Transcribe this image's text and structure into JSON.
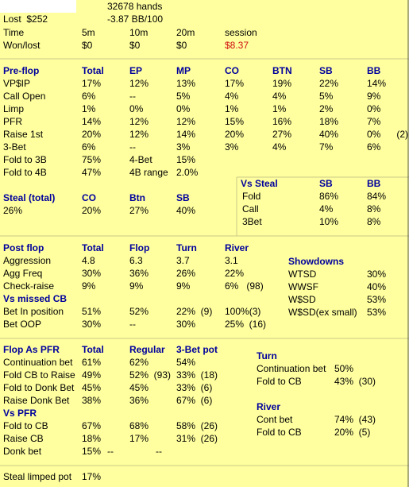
{
  "summary": {
    "hands": "32678 hands",
    "lost": "Lost  $252",
    "winrate": "-3.87 BB/100"
  },
  "won_table": {
    "header": [
      "Time",
      "5m",
      "10m",
      "20m",
      "session"
    ],
    "rows": [
      [
        "Won/lost",
        "$0",
        "$0",
        "$0",
        "$8.37"
      ]
    ]
  },
  "preflop": {
    "header": [
      "Pre-flop",
      "Total",
      "EP",
      "MP",
      "CO",
      "BTN",
      "SB",
      "BB"
    ],
    "rows": [
      [
        "VP$IP",
        "17%",
        "12%",
        "13%",
        "17%",
        "19%",
        "22%",
        "14%"
      ],
      [
        "Call Open",
        "6%",
        "--",
        "5%",
        "4%",
        "4%",
        "5%",
        "9%"
      ],
      [
        "Limp",
        "1%",
        "0%",
        "0%",
        "1%",
        "1%",
        "2%",
        "0%"
      ],
      [
        "PFR",
        "14%",
        "12%",
        "12%",
        "15%",
        "16%",
        "18%",
        "7%"
      ],
      [
        "Raise 1st",
        "20%",
        "12%",
        "14%",
        "20%",
        "27%",
        "40%",
        "0%      (2)"
      ],
      [
        "3-Bet",
        "6%",
        "--",
        "3%",
        "3%",
        "4%",
        "7%",
        "6%"
      ]
    ]
  },
  "preflop_extra": {
    "rows": [
      [
        "Fold to 3B",
        "75%",
        "4-Bet",
        "15%"
      ],
      [
        "Fold to 4B",
        "47%",
        "4B range",
        "2.0%"
      ]
    ]
  },
  "vs_steal": {
    "header": [
      "Vs Steal",
      "SB",
      "BB"
    ],
    "rows": [
      [
        "Fold",
        "86%",
        "84%"
      ],
      [
        "Call",
        "4%",
        "8%"
      ],
      [
        "3Bet",
        "10%",
        "8%"
      ]
    ]
  },
  "steal": {
    "header": [
      "Steal (total)",
      "CO",
      "Btn",
      "SB"
    ],
    "rows": [
      [
        "26%",
        "20%",
        "27%",
        "40%"
      ]
    ]
  },
  "postflop": {
    "header": [
      "Post flop",
      "Total",
      "Flop",
      "Turn",
      "River"
    ],
    "rows": [
      [
        "Aggression",
        "4.8",
        "6.3",
        "3.7",
        "3.1"
      ],
      [
        "Agg Freq",
        "30%",
        "36%",
        "26%",
        "22%"
      ],
      [
        "Check-raise",
        "9%",
        "9%",
        "9%",
        "6%   (98)"
      ]
    ]
  },
  "vs_missed_cb": {
    "header": [
      "Vs missed CB"
    ],
    "rows": [
      [
        "Bet In position",
        "51%",
        "52%",
        "22%  (9)",
        "100%(3)"
      ],
      [
        "Bet OOP",
        "30%",
        "--",
        "30%",
        "25%  (16)"
      ]
    ]
  },
  "showdowns": {
    "header": [
      "Showdowns"
    ],
    "rows": [
      [
        "WTSD",
        "30%"
      ],
      [
        "WWSF",
        "40%"
      ],
      [
        "W$SD",
        "53%"
      ],
      [
        "W$SD(ex small)",
        "53%"
      ]
    ]
  },
  "flop_as_pfr": {
    "header": [
      "Flop As PFR",
      "Total",
      "Regular",
      "3-Bet pot"
    ],
    "rows": [
      [
        "Continuation bet",
        "61%",
        "62%",
        "54%"
      ],
      [
        "Fold CB to Raise",
        "49%",
        "52%  (93)",
        "33%  (18)"
      ],
      [
        "Fold to Donk Bet",
        "45%",
        "45%",
        "33%  (6)"
      ],
      [
        "Raise Donk Bet",
        "38%",
        "36%",
        "67%  (6)"
      ]
    ]
  },
  "vs_pfr": {
    "header": [
      "Vs PFR"
    ],
    "rows": [
      [
        "Fold to CB",
        "67%",
        "68%",
        "58%  (26)"
      ],
      [
        "Raise CB",
        "18%",
        "17%",
        "31%  (26)"
      ],
      [
        "Donk bet",
        "15%",
        "--",
        "--"
      ]
    ]
  },
  "steal_limped": {
    "rows": [
      [
        "Steal limped pot",
        "17%"
      ]
    ]
  },
  "turn": {
    "header": [
      "Turn"
    ],
    "rows": [
      [
        "Continuation bet",
        "50%"
      ],
      [
        "Fold to CB",
        "43%  (30)"
      ]
    ]
  },
  "river": {
    "header": [
      "River"
    ],
    "rows": [
      [
        "Cont bet",
        "74%  (43)"
      ],
      [
        "Fold to CB",
        "20%  (5)"
      ]
    ]
  }
}
